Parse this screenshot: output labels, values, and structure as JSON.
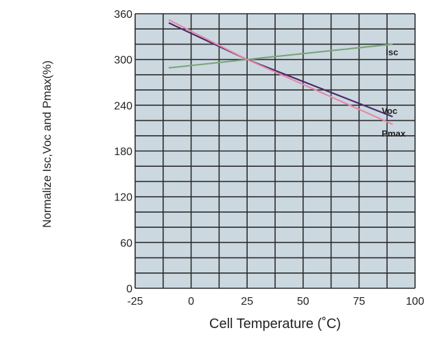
{
  "chart_data": {
    "type": "line",
    "title": "",
    "xlabel": "Cell Temperature (˚C)",
    "ylabel": "Normalize Isc,Voc and Pmax(%)",
    "xlim": [
      -25,
      100
    ],
    "ylim": [
      0,
      360
    ],
    "x_ticks": [
      -25,
      0,
      25,
      50,
      75,
      100
    ],
    "y_ticks": [
      0,
      60,
      120,
      180,
      240,
      300,
      360
    ],
    "x_minor_step": 12.5,
    "y_minor_step": 20,
    "grid": true,
    "colors": {
      "plot_bg": "#ccd8e0",
      "grid": "#2a2a2a",
      "Isc": "#7aa57a",
      "Voc": "#4a2a6a",
      "Pmax": "#e28aa8"
    },
    "series": [
      {
        "name": "Isc",
        "x": [
          -10,
          25,
          90
        ],
        "y": [
          289,
          300,
          320
        ]
      },
      {
        "name": "Voc",
        "x": [
          -10,
          25,
          90
        ],
        "y": [
          348,
          300,
          225
        ]
      },
      {
        "name": "Pmax",
        "x": [
          -10,
          25,
          90
        ],
        "y": [
          352,
          300,
          215
        ]
      }
    ]
  }
}
